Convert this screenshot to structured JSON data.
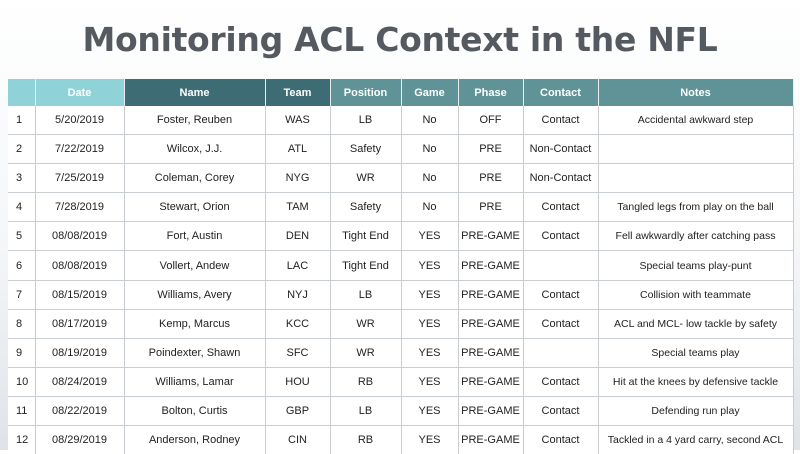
{
  "title": "Monitoring ACL Context in the NFL",
  "table": {
    "headers": {
      "index": "",
      "date": "Date",
      "name": "Name",
      "team": "Team",
      "position": "Position",
      "game": "Game",
      "phase": "Phase",
      "contact": "Contact",
      "notes": "Notes"
    },
    "rows": [
      {
        "index": "1",
        "date": "5/20/2019",
        "name": "Foster, Reuben",
        "team": "WAS",
        "position": "LB",
        "game": "No",
        "phase": "OFF",
        "contact": "Contact",
        "notes": "Accidental awkward step"
      },
      {
        "index": "2",
        "date": "7/22/2019",
        "name": "Wilcox, J.J.",
        "team": "ATL",
        "position": "Safety",
        "game": "No",
        "phase": "PRE",
        "contact": "Non-Contact",
        "notes": ""
      },
      {
        "index": "3",
        "date": "7/25/2019",
        "name": "Coleman, Corey",
        "team": "NYG",
        "position": "WR",
        "game": "No",
        "phase": "PRE",
        "contact": "Non-Contact",
        "notes": ""
      },
      {
        "index": "4",
        "date": "7/28/2019",
        "name": "Stewart, Orion",
        "team": "TAM",
        "position": "Safety",
        "game": "No",
        "phase": "PRE",
        "contact": "Contact",
        "notes": "Tangled legs from play on the ball"
      },
      {
        "index": "5",
        "date": "08/08/2019",
        "name": "Fort, Austin",
        "team": "DEN",
        "position": "Tight End",
        "game": "YES",
        "phase": "PRE-GAME",
        "contact": "Contact",
        "notes": "Fell awkwardly after catching pass"
      },
      {
        "index": "6",
        "date": "08/08/2019",
        "name": "Vollert, Andew",
        "team": "LAC",
        "position": "Tight End",
        "game": "YES",
        "phase": "PRE-GAME",
        "contact": "",
        "notes": "Special teams play-punt"
      },
      {
        "index": "7",
        "date": "08/15/2019",
        "name": "Williams, Avery",
        "team": "NYJ",
        "position": "LB",
        "game": "YES",
        "phase": "PRE-GAME",
        "contact": "Contact",
        "notes": "Collision with teammate"
      },
      {
        "index": "8",
        "date": "08/17/2019",
        "name": "Kemp, Marcus",
        "team": "KCC",
        "position": "WR",
        "game": "YES",
        "phase": "PRE-GAME",
        "contact": "Contact",
        "notes": "ACL and MCL- low tackle by safety"
      },
      {
        "index": "9",
        "date": "08/19/2019",
        "name": "Poindexter, Shawn",
        "team": "SFC",
        "position": "WR",
        "game": "YES",
        "phase": "PRE-GAME",
        "contact": "",
        "notes": "Special teams play"
      },
      {
        "index": "10",
        "date": "08/24/2019",
        "name": "Williams, Lamar",
        "team": "HOU",
        "position": "RB",
        "game": "YES",
        "phase": "PRE-GAME",
        "contact": "Contact",
        "notes": "Hit at the knees by defensive tackle"
      },
      {
        "index": "11",
        "date": "08/22/2019",
        "name": "Bolton, Curtis",
        "team": "GBP",
        "position": "LB",
        "game": "YES",
        "phase": "PRE-GAME",
        "contact": "Contact",
        "notes": "Defending run play"
      },
      {
        "index": "12",
        "date": "08/29/2019",
        "name": "Anderson, Rodney",
        "team": "CIN",
        "position": "RB",
        "game": "YES",
        "phase": "PRE-GAME",
        "contact": "Contact",
        "notes": "Tackled in a 4 yard carry, second ACL"
      }
    ]
  }
}
